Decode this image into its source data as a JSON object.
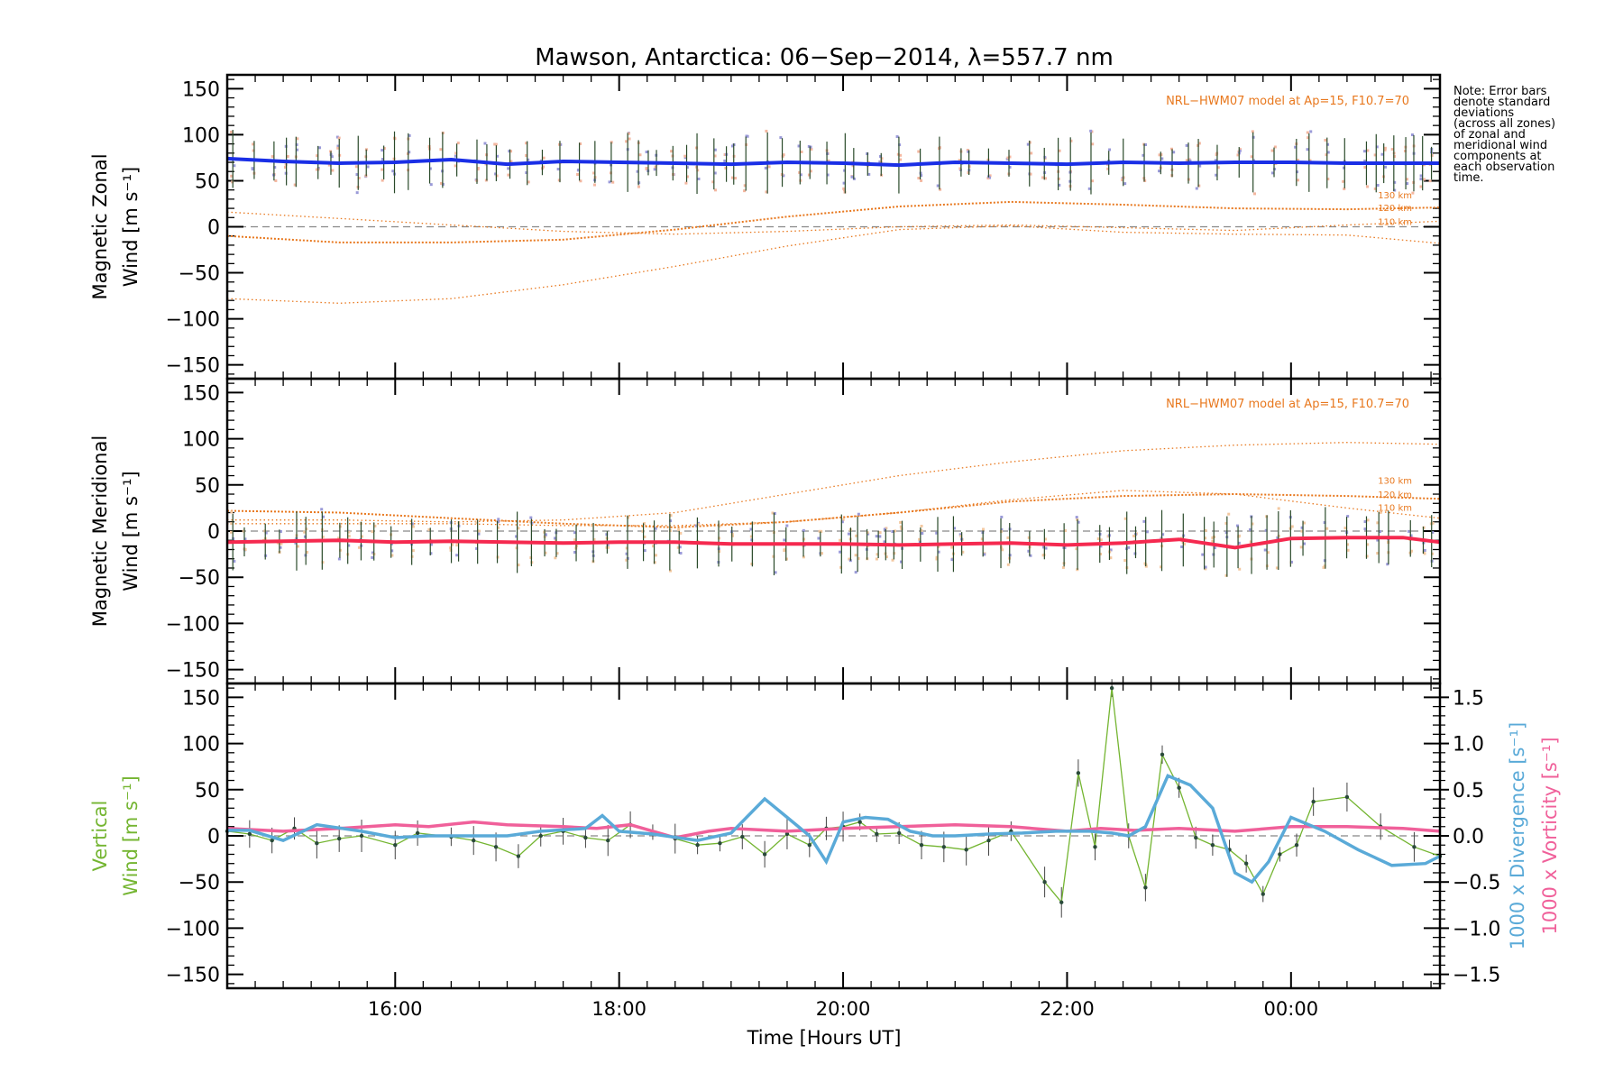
{
  "chart_data": {
    "type": "line",
    "title": "Mawson, Antarctica: 06−Sep−2014, λ=557.7 nm",
    "xlabel": "Time [Hours UT]",
    "x_range_hours": [
      14.5,
      25.33
    ],
    "x_ticks": [
      {
        "t": 16,
        "label": "16:00"
      },
      {
        "t": 18,
        "label": "18:00"
      },
      {
        "t": 20,
        "label": "20:00"
      },
      {
        "t": 22,
        "label": "22:00"
      },
      {
        "t": 24,
        "label": "00:00"
      }
    ],
    "note": [
      "Note: Error bars",
      "denote standard",
      "deviations",
      "(across all zones)",
      "of zonal and",
      "meridional wind",
      "components at",
      "each observation",
      "time."
    ],
    "colors": {
      "zonal": "#1a2fe6",
      "meridional": "#f5294f",
      "vertical": "#74b531",
      "divergence": "#5aaad8",
      "vorticity": "#f0609a",
      "model": "#e8781e",
      "errorbar": "#9a9ad8"
    },
    "panels": [
      {
        "ylabel": [
          "Magnetic Zonal",
          "Wind [m s⁻¹]"
        ],
        "ylim": [
          -165,
          165
        ],
        "yticks": [
          150,
          100,
          50,
          0,
          -50,
          -100,
          -150
        ],
        "model_label": "NRL−HWM07 model at Ap=15, F10.7=70",
        "height_labels": [
          {
            "text": "130 km",
            "y": 35
          },
          {
            "text": "120 km",
            "y": 21
          },
          {
            "text": "110 km",
            "y": 6
          }
        ],
        "series": [
          {
            "name": "zonal wind",
            "x": [
              14.5,
              15.0,
              15.5,
              16.0,
              16.5,
              17.0,
              17.5,
              18.0,
              18.5,
              19.0,
              19.5,
              20.0,
              20.5,
              21.0,
              21.5,
              22.0,
              22.5,
              23.0,
              23.5,
              24.0,
              24.5,
              25.0,
              25.33
            ],
            "y": [
              74,
              71,
              69,
              70,
              73,
              68,
              71,
              70,
              69,
              68,
              70,
              69,
              67,
              70,
              69,
              68,
              70,
              69,
              70,
              70,
              69,
              69,
              69
            ]
          },
          {
            "name": "model 130 km",
            "x": [
              14.5,
              15.5,
              16.5,
              17.5,
              18.5,
              19.5,
              20.5,
              21.5,
              22.5,
              23.5,
              24.5,
              25.33
            ],
            "y": [
              -10,
              -17,
              -17,
              -14,
              -3,
              11,
              22,
              27,
              24,
              20,
              19,
              21
            ]
          },
          {
            "name": "model 120 km",
            "x": [
              14.5,
              15.5,
              16.5,
              17.5,
              18.5,
              19.5,
              20.5,
              21.5,
              22.5,
              23.5,
              24.5,
              25.33
            ],
            "y": [
              16,
              9,
              2,
              -5,
              -8,
              -5,
              0,
              2,
              -1,
              -4,
              2,
              6
            ]
          },
          {
            "name": "model 110 km",
            "x": [
              14.5,
              15.5,
              16.5,
              17.5,
              18.5,
              19.5,
              20.5,
              21.5,
              22.5,
              23.5,
              24.5,
              25.33
            ],
            "y": [
              -78,
              -83,
              -78,
              -63,
              -43,
              -21,
              -3,
              1,
              -6,
              -8,
              -9,
              -18
            ]
          }
        ]
      },
      {
        "ylabel": [
          "Magnetic Meridional",
          "Wind [m s⁻¹]"
        ],
        "ylim": [
          -165,
          165
        ],
        "yticks": [
          150,
          100,
          50,
          0,
          -50,
          -100,
          -150
        ],
        "model_label": "NRL−HWM07 model at Ap=15, F10.7=70",
        "height_labels": [
          {
            "text": "130 km",
            "y": 55
          },
          {
            "text": "120 km",
            "y": 40
          },
          {
            "text": "110 km",
            "y": 26
          }
        ],
        "series": [
          {
            "name": "meridional wind",
            "x": [
              14.5,
              15.0,
              15.5,
              16.0,
              16.5,
              17.0,
              17.5,
              18.0,
              18.5,
              19.0,
              19.5,
              20.0,
              20.5,
              21.0,
              21.5,
              22.0,
              22.5,
              23.0,
              23.5,
              24.0,
              24.5,
              25.0,
              25.33
            ],
            "y": [
              -12,
              -11,
              -10,
              -12,
              -11,
              -12,
              -13,
              -12,
              -12,
              -14,
              -14,
              -14,
              -15,
              -14,
              -13,
              -15,
              -13,
              -9,
              -18,
              -8,
              -7,
              -7,
              -12
            ]
          },
          {
            "name": "model 130 km",
            "x": [
              14.5,
              15.5,
              16.5,
              17.5,
              18.5,
              19.5,
              20.5,
              21.5,
              22.5,
              23.5,
              24.5,
              25.33
            ],
            "y": [
              22,
              20,
              14,
              8,
              4,
              10,
              20,
              32,
              38,
              40,
              38,
              35
            ]
          },
          {
            "name": "model 120 km",
            "x": [
              14.5,
              15.5,
              16.5,
              17.5,
              18.5,
              19.5,
              20.5,
              21.5,
              22.5,
              23.5,
              24.5,
              25.33
            ],
            "y": [
              8,
              8,
              8,
              6,
              6,
              10,
              20,
              34,
              44,
              40,
              25,
              14
            ]
          },
          {
            "name": "model 110 km",
            "x": [
              14.5,
              15.5,
              16.5,
              17.5,
              18.5,
              19.5,
              20.5,
              21.5,
              22.5,
              23.5,
              24.5,
              25.33
            ],
            "y": [
              12,
              12,
              10,
              12,
              20,
              40,
              60,
              75,
              87,
              93,
              96,
              94
            ]
          }
        ]
      },
      {
        "ylabel": [
          "Vertical",
          "Wind [m s⁻¹]"
        ],
        "ylim": [
          -165,
          165
        ],
        "yticks": [
          150,
          100,
          50,
          0,
          -50,
          -100,
          -150
        ],
        "y2label_divergence": "1000 x Divergence [s⁻¹]",
        "y2label_vorticity": "1000 x Vorticity [s⁻¹]",
        "y2lim": [
          -1.65,
          1.65
        ],
        "y2ticks": [
          1.5,
          1.0,
          0.5,
          0.0,
          -0.5,
          -1.0,
          -1.5
        ],
        "y2tick_labels": [
          "1.5",
          "1.0",
          "0.5",
          "0.0",
          "−0.5",
          "−1.0",
          "−1.5"
        ],
        "series": [
          {
            "name": "vertical wind",
            "x": [
              14.5,
              14.7,
              14.9,
              15.1,
              15.3,
              15.5,
              15.7,
              16.0,
              16.2,
              16.5,
              16.7,
              16.9,
              17.1,
              17.3,
              17.5,
              17.7,
              17.9,
              18.1,
              18.3,
              18.5,
              18.7,
              18.9,
              19.1,
              19.3,
              19.5,
              19.7,
              19.85,
              20.0,
              20.15,
              20.3,
              20.5,
              20.7,
              20.9,
              21.1,
              21.3,
              21.5,
              21.8,
              21.95,
              22.1,
              22.25,
              22.4,
              22.55,
              22.7,
              22.85,
              23.0,
              23.15,
              23.3,
              23.45,
              23.6,
              23.75,
              23.9,
              24.05,
              24.2,
              24.5,
              24.8,
              25.1,
              25.33
            ],
            "y": [
              5,
              2,
              -5,
              8,
              -8,
              -3,
              0,
              -10,
              3,
              -1,
              -5,
              -12,
              -22,
              0,
              5,
              -2,
              -5,
              12,
              4,
              -3,
              -10,
              -8,
              -1,
              -20,
              2,
              -10,
              8,
              10,
              15,
              2,
              3,
              -10,
              -12,
              -15,
              -5,
              5,
              -50,
              -72,
              68,
              -12,
              160,
              0,
              -56,
              88,
              52,
              -2,
              -10,
              -15,
              -30,
              -63,
              -20,
              -10,
              37,
              42,
              10,
              -12,
              -22
            ]
          },
          {
            "name": "divergence",
            "x": [
              14.5,
              14.7,
              15.0,
              15.3,
              15.7,
              16.0,
              16.3,
              16.7,
              17.0,
              17.3,
              17.7,
              17.85,
              18.0,
              18.3,
              18.7,
              19.0,
              19.3,
              19.5,
              19.7,
              19.85,
              20.0,
              20.2,
              20.4,
              20.6,
              20.8,
              21.0,
              21.3,
              21.6,
              21.9,
              22.2,
              22.4,
              22.55,
              22.7,
              22.9,
              23.1,
              23.3,
              23.5,
              23.65,
              23.8,
              24.0,
              24.3,
              24.6,
              24.9,
              25.2,
              25.33
            ],
            "y": [
              0.06,
              0.06,
              -0.05,
              0.12,
              0.05,
              -0.02,
              0.0,
              0.0,
              0.0,
              0.05,
              0.08,
              0.22,
              0.05,
              0.02,
              -0.05,
              0.03,
              0.4,
              0.2,
              0.0,
              -0.28,
              0.15,
              0.2,
              0.18,
              0.05,
              0.0,
              0.0,
              0.02,
              0.03,
              0.05,
              0.05,
              0.03,
              0.0,
              0.1,
              0.65,
              0.55,
              0.3,
              -0.4,
              -0.5,
              -0.28,
              0.2,
              0.05,
              -0.15,
              -0.32,
              -0.3,
              -0.22
            ]
          },
          {
            "name": "vorticity",
            "x": [
              14.5,
              15.0,
              15.5,
              16.0,
              16.3,
              16.7,
              17.0,
              17.5,
              17.8,
              18.1,
              18.5,
              18.8,
              19.0,
              19.5,
              20.0,
              20.5,
              21.0,
              21.5,
              22.0,
              22.3,
              22.6,
              23.0,
              23.5,
              24.0,
              24.5,
              25.0,
              25.33
            ],
            "y": [
              0.08,
              0.05,
              0.08,
              0.12,
              0.1,
              0.15,
              0.12,
              0.1,
              0.08,
              0.12,
              -0.02,
              0.05,
              0.08,
              0.05,
              0.08,
              0.1,
              0.12,
              0.1,
              0.05,
              0.08,
              0.06,
              0.08,
              0.05,
              0.1,
              0.1,
              0.08,
              0.05
            ]
          }
        ]
      }
    ]
  }
}
